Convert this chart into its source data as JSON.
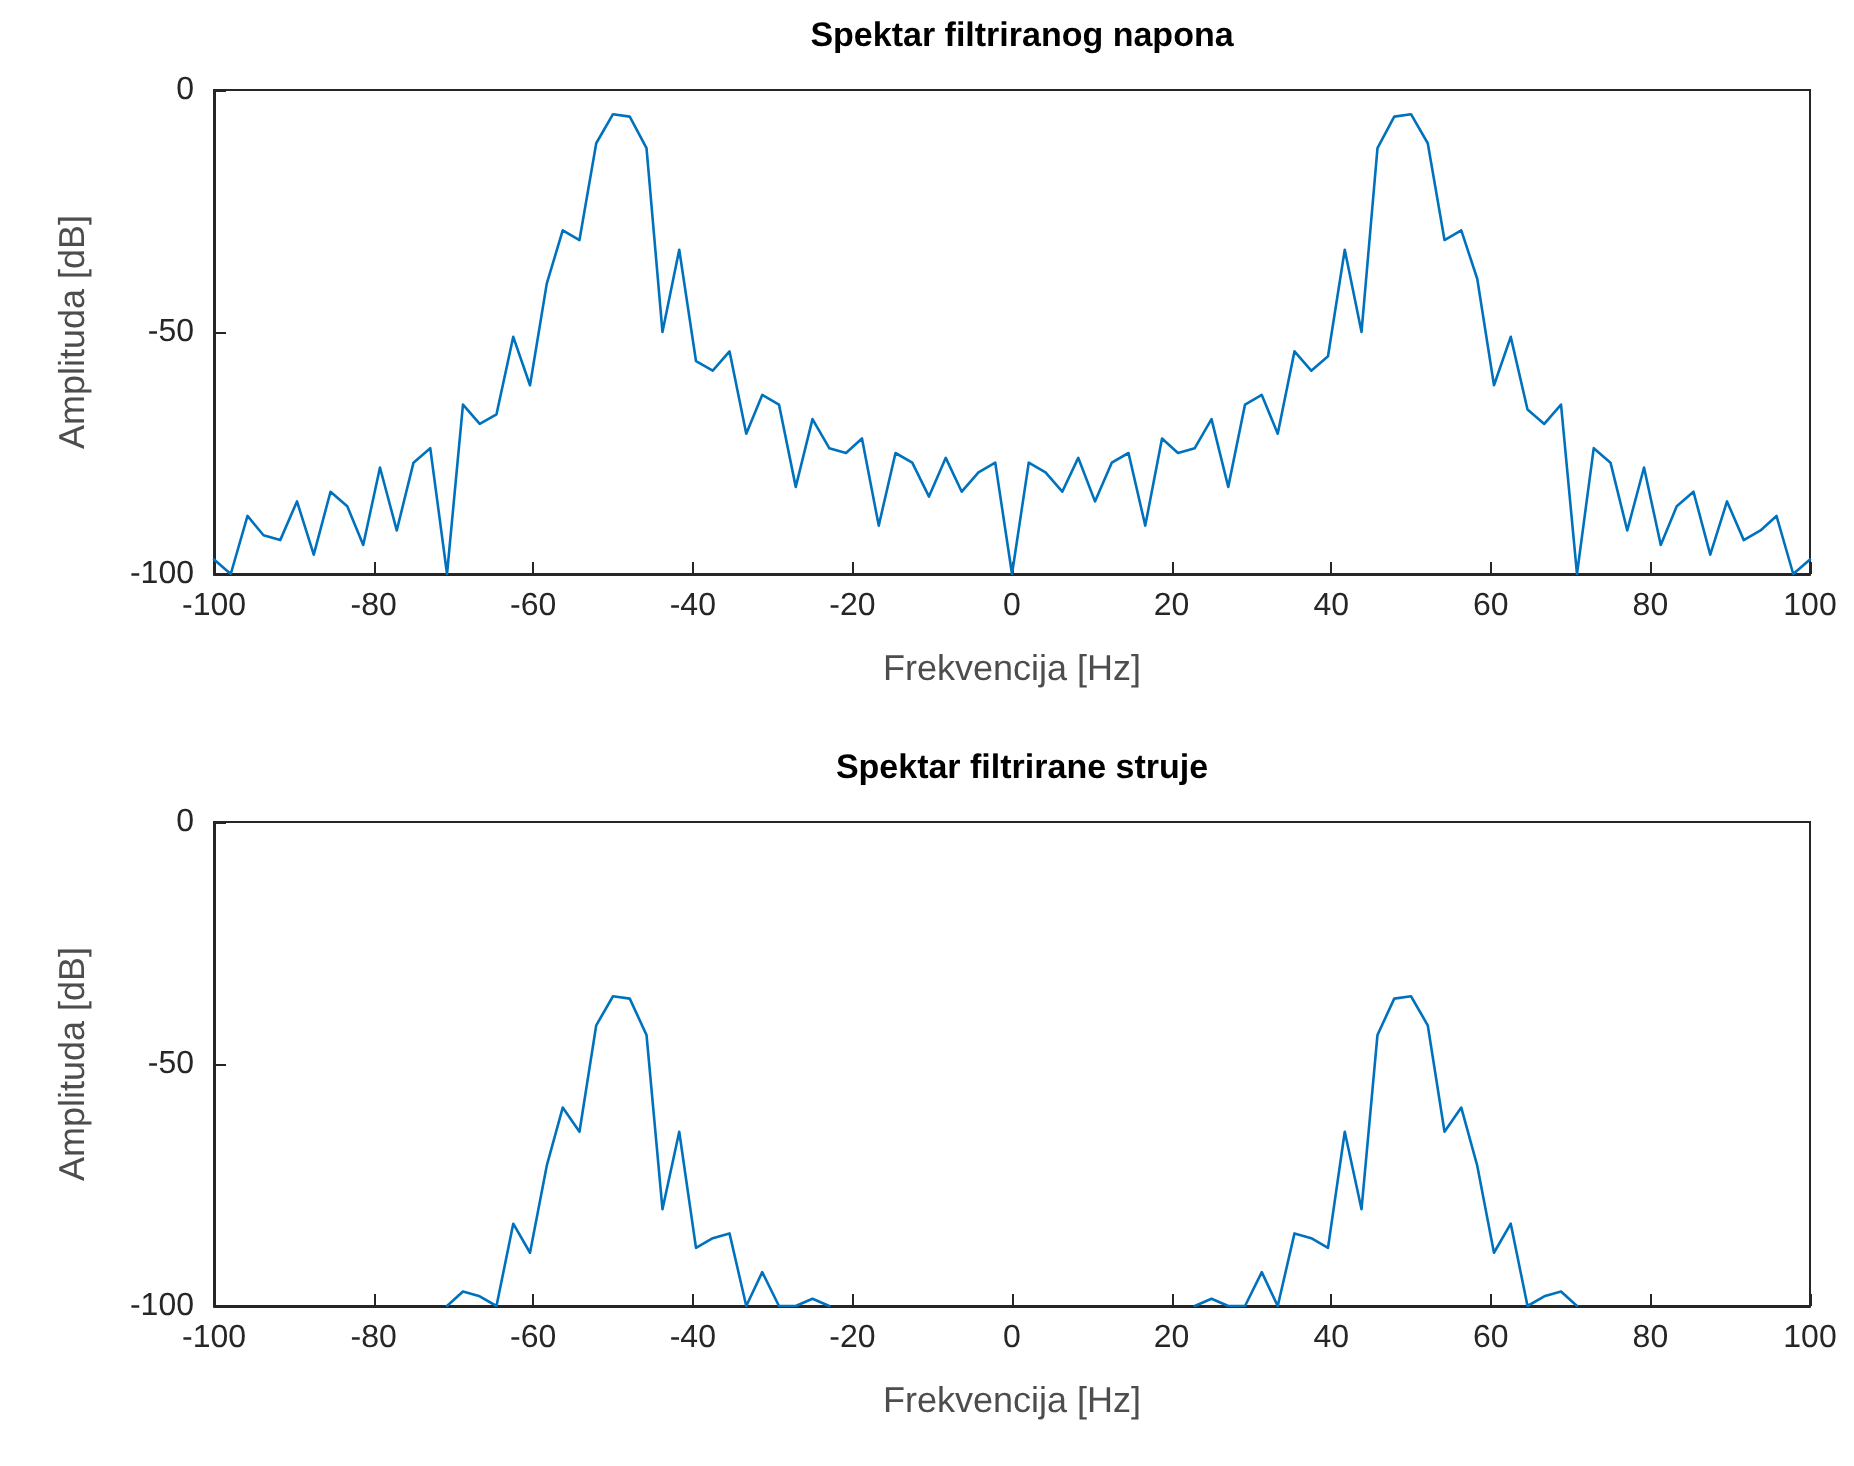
{
  "chart_data": [
    {
      "type": "line",
      "title": "Spektar filtriranog napona",
      "xlabel": "Frekvencija [Hz]",
      "ylabel": "Amplituda [dB]",
      "color": "#0072bd",
      "xlim": [
        -100,
        100
      ],
      "ylim": [
        -100,
        0
      ],
      "xticks": [
        -100,
        -80,
        -60,
        -40,
        -20,
        0,
        20,
        40,
        60,
        80,
        100
      ],
      "yticks": [
        -100,
        -50,
        0
      ],
      "x": [
        -100,
        -97.9,
        -95.8,
        -93.8,
        -91.7,
        -89.6,
        -87.5,
        -85.4,
        -83.3,
        -81.3,
        -79.2,
        -77.1,
        -75,
        -72.9,
        -70.8,
        -68.8,
        -66.7,
        -64.6,
        -62.5,
        -60.4,
        -58.3,
        -56.3,
        -54.2,
        -52.1,
        -50,
        -47.9,
        -45.8,
        -43.8,
        -41.7,
        -39.6,
        -37.5,
        -35.4,
        -33.3,
        -31.3,
        -29.2,
        -27.1,
        -25,
        -22.9,
        -20.8,
        -18.8,
        -16.7,
        -14.6,
        -12.5,
        -10.4,
        -8.3,
        -6.3,
        -4.2,
        -2.1,
        0,
        2.1,
        4.2,
        6.3,
        8.3,
        10.4,
        12.5,
        14.6,
        16.7,
        18.8,
        20.8,
        22.9,
        25,
        27.1,
        29.2,
        31.3,
        33.3,
        35.4,
        37.5,
        39.6,
        41.7,
        43.8,
        45.8,
        47.9,
        50,
        52.1,
        54.2,
        56.3,
        58.3,
        60.4,
        62.5,
        64.6,
        66.7,
        68.8,
        70.8,
        72.9,
        75,
        77.1,
        79.2,
        81.3,
        83.3,
        85.4,
        87.5,
        89.6,
        91.7,
        93.8,
        95.8,
        97.9,
        100
      ],
      "values": [
        -97,
        -100,
        -88,
        -92,
        -93,
        -85,
        -96,
        -83,
        -86,
        -94,
        -78,
        -91,
        -77,
        -74,
        -100,
        -65,
        -69,
        -67,
        -51,
        -61,
        -40,
        -29,
        -31,
        -11,
        -5,
        -5.5,
        -12,
        -50,
        -33,
        -56,
        -58,
        -54,
        -71,
        -63,
        -65,
        -82,
        -68,
        -74,
        -75,
        -72,
        -90,
        -75,
        -77,
        -84,
        -76,
        -83,
        -79,
        -77,
        -100,
        -77,
        -79,
        -83,
        -76,
        -85,
        -77,
        -75,
        -90,
        -72,
        -75,
        -74,
        -68,
        -82,
        -65,
        -63,
        -71,
        -54,
        -58,
        -55,
        -33,
        -50,
        -12,
        -5.5,
        -5,
        -11,
        -31,
        -29,
        -39,
        -61,
        -51,
        -66,
        -69,
        -65,
        -100,
        -74,
        -77,
        -91,
        -78,
        -94,
        -86,
        -83,
        -96,
        -85,
        -93,
        -91,
        -88,
        -100,
        -97
      ]
    },
    {
      "type": "line",
      "title": "Spektar filtrirane struje",
      "xlabel": "Frekvencija [Hz]",
      "ylabel": "Amplituda [dB]",
      "color": "#0072bd",
      "xlim": [
        -100,
        100
      ],
      "ylim": [
        -100,
        0
      ],
      "xticks": [
        -100,
        -80,
        -60,
        -40,
        -20,
        0,
        20,
        40,
        60,
        80,
        100
      ],
      "yticks": [
        -100,
        -50,
        0
      ],
      "x": [
        -70.8,
        -68.8,
        -66.7,
        -64.6,
        -62.5,
        -60.4,
        -58.3,
        -56.3,
        -54.2,
        -52.1,
        -50,
        -47.9,
        -45.8,
        -43.8,
        -41.7,
        -39.6,
        -37.5,
        -35.4,
        -33.3,
        -31.3,
        -29.2,
        -27.1,
        -25,
        -22.9,
        -20.8,
        -18.8,
        -16.7,
        -14.6,
        -12.5,
        -10.4,
        -8.3,
        -6.3,
        -4.2,
        -2.1,
        0,
        2.1,
        4.2,
        6.3,
        8.3,
        10.4,
        12.5,
        14.6,
        16.7,
        18.8,
        20.8,
        22.9,
        25,
        27.1,
        29.2,
        31.3,
        33.3,
        35.4,
        37.5,
        39.6,
        41.7,
        43.8,
        45.8,
        47.9,
        50,
        52.1,
        54.2,
        56.3,
        58.3,
        60.4,
        62.5,
        64.6,
        66.7,
        68.8,
        70.8
      ],
      "values": [
        -100,
        -97,
        -98,
        -100,
        -83,
        -89,
        -71,
        -59,
        -64,
        -42,
        -36,
        -36.5,
        -44,
        -80,
        -64,
        -88,
        -86,
        -85,
        -100,
        -93,
        -100,
        -100,
        -98.5,
        -100,
        null,
        null,
        null,
        null,
        null,
        null,
        null,
        null,
        null,
        null,
        null,
        null,
        null,
        null,
        null,
        null,
        null,
        null,
        null,
        null,
        null,
        -100,
        -98.5,
        -100,
        -100,
        -93,
        -100,
        -85,
        -86,
        -88,
        -64,
        -80,
        -44,
        -36.5,
        -36,
        -42,
        -64,
        -59,
        -71,
        -89,
        -83,
        -100,
        -98,
        -97,
        -100
      ]
    }
  ]
}
